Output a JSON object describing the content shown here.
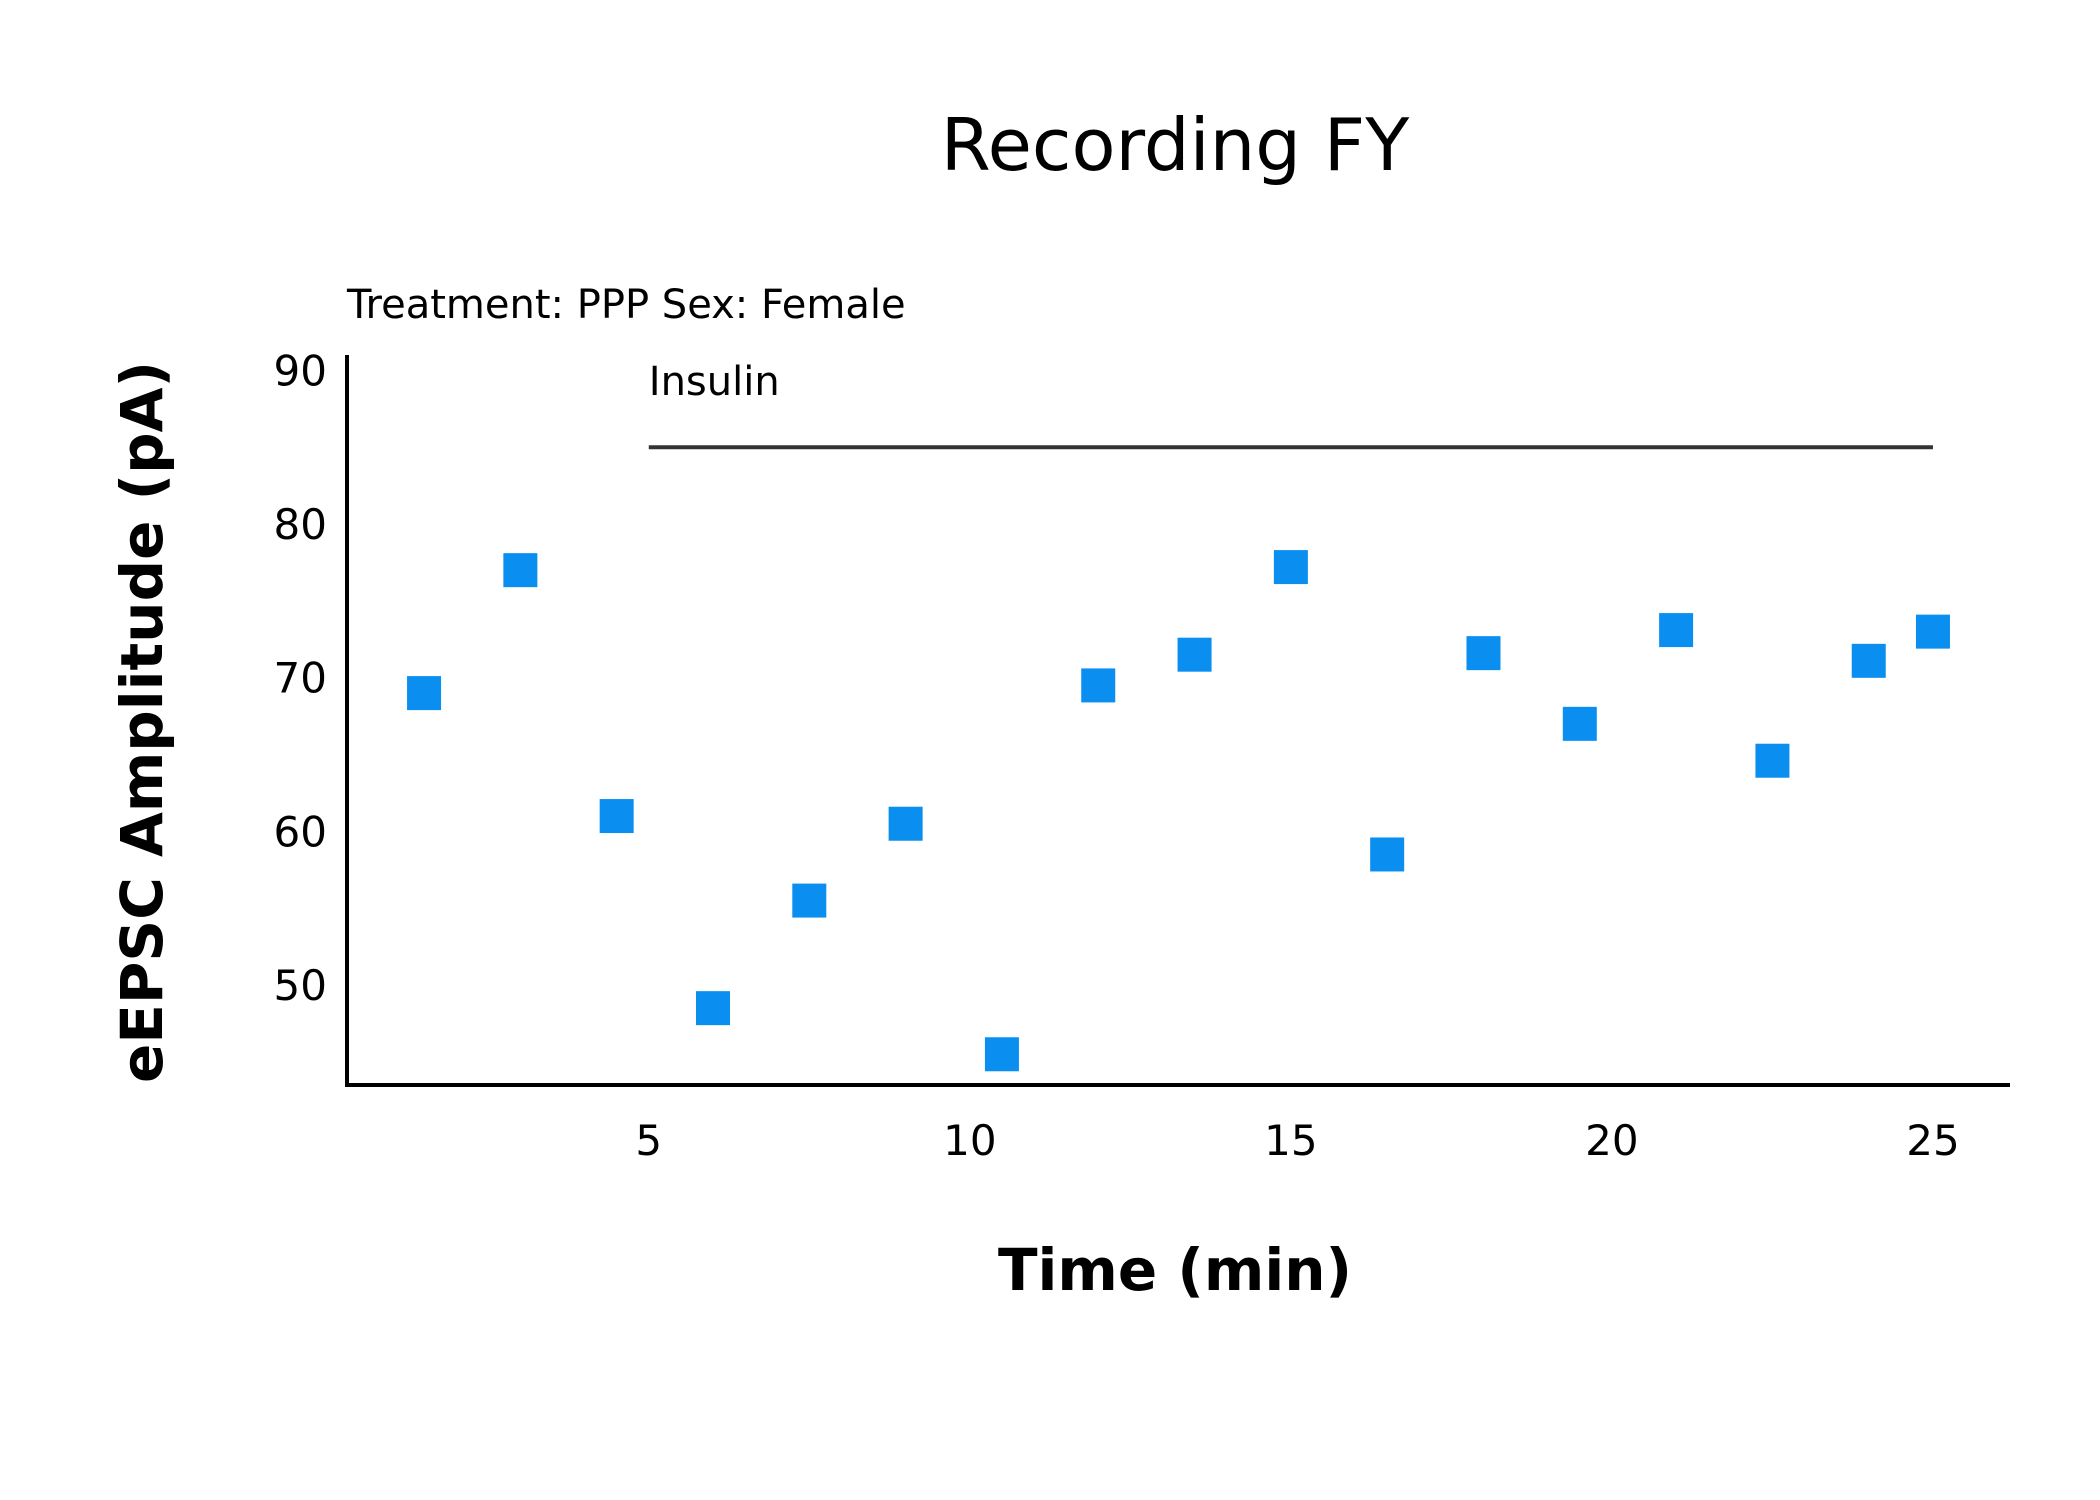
{
  "chart_data": {
    "type": "scatter",
    "title": "Recording FY",
    "subtitle": "Treatment: PPP  Sex: Female",
    "xlabel": "Time (min)",
    "ylabel": "eEPSC Amplitude (pA)",
    "xlim": [
      0.3,
      26.2
    ],
    "ylim": [
      43.5,
      91
    ],
    "xticks": [
      5,
      10,
      15,
      20,
      25
    ],
    "yticks": [
      50,
      60,
      70,
      80,
      90
    ],
    "grid": false,
    "marker": "square",
    "marker_color": "#0a8ff0",
    "series": [
      {
        "x": [
          1.5,
          3,
          4.5,
          6,
          7.5,
          9,
          10.5,
          12,
          13.5,
          15,
          16.5,
          18,
          19.5,
          21,
          22.5,
          24,
          25
        ],
        "y": [
          69,
          77,
          61,
          48.5,
          55.5,
          60.5,
          45.5,
          69.5,
          71.5,
          77.2,
          58.5,
          71.6,
          67,
          73.1,
          64.6,
          71.1,
          73
        ]
      }
    ],
    "annotations": [
      {
        "label": "Insulin",
        "x_start": 5,
        "x_end": 25,
        "y": 85,
        "line_color": "#333333"
      }
    ]
  }
}
